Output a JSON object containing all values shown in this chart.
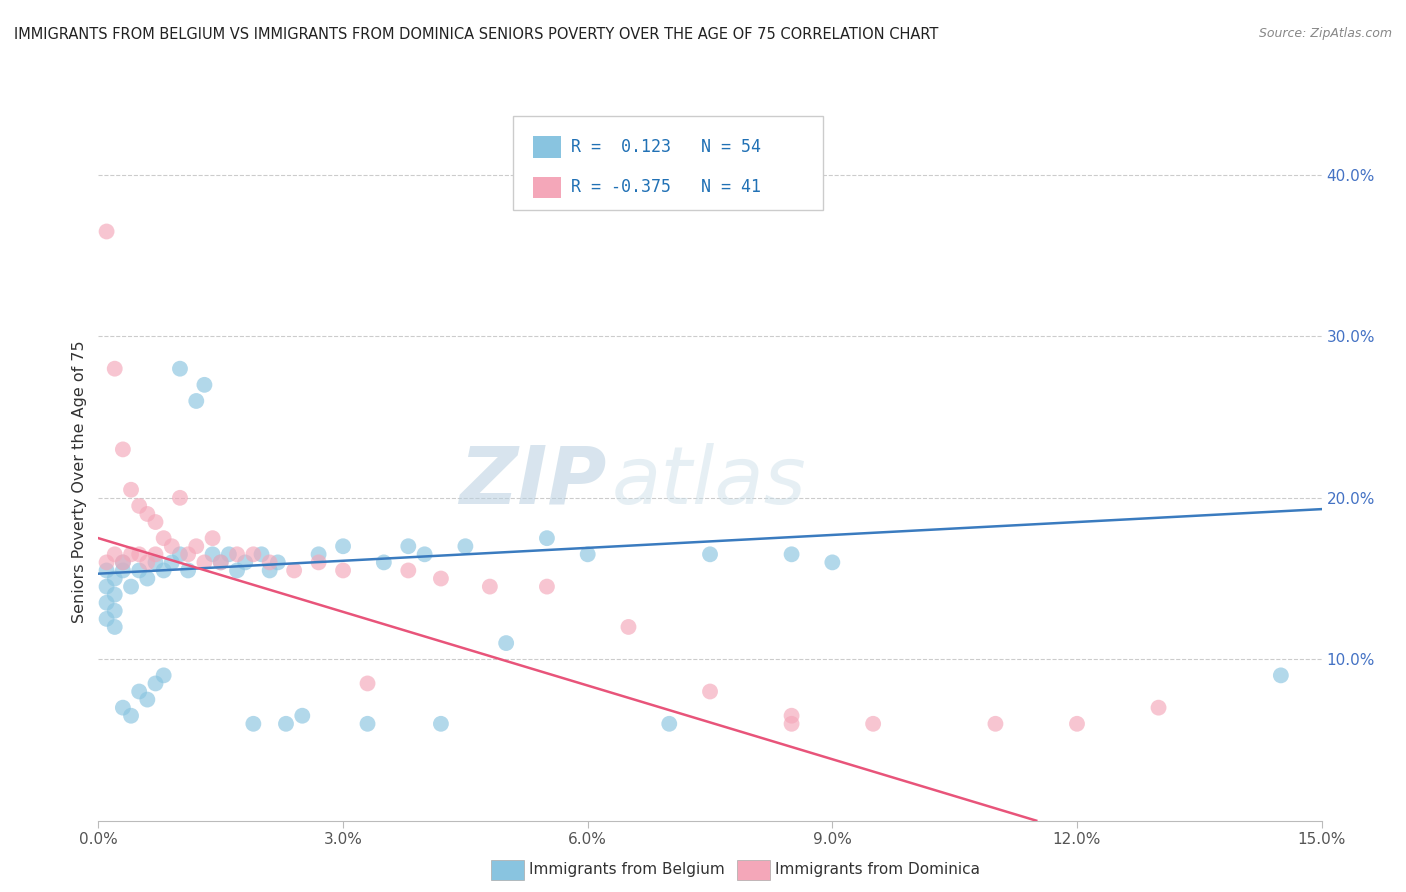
{
  "title": "IMMIGRANTS FROM BELGIUM VS IMMIGRANTS FROM DOMINICA SENIORS POVERTY OVER THE AGE OF 75 CORRELATION CHART",
  "source": "Source: ZipAtlas.com",
  "ylabel": "Seniors Poverty Over the Age of 75",
  "watermark": "ZIPatlas",
  "blue_label": "Immigrants from Belgium",
  "pink_label": "Immigrants from Dominica",
  "blue_R": 0.123,
  "blue_N": 54,
  "pink_R": -0.375,
  "pink_N": 41,
  "xlim": [
    0.0,
    0.15
  ],
  "ylim": [
    0.0,
    0.42
  ],
  "xticks": [
    0.0,
    0.03,
    0.06,
    0.09,
    0.12,
    0.15
  ],
  "xtick_labels": [
    "0.0%",
    "3.0%",
    "6.0%",
    "9.0%",
    "12.0%",
    "15.0%"
  ],
  "yticks_right": [
    0.1,
    0.2,
    0.3,
    0.4
  ],
  "ytick_right_labels": [
    "10.0%",
    "20.0%",
    "30.0%",
    "40.0%"
  ],
  "blue_color": "#89c4e0",
  "pink_color": "#f4a7b9",
  "blue_line_color": "#3a7bbf",
  "pink_line_color": "#e8547a",
  "blue_scatter_x": [
    0.001,
    0.001,
    0.001,
    0.001,
    0.002,
    0.002,
    0.002,
    0.002,
    0.003,
    0.003,
    0.003,
    0.004,
    0.004,
    0.005,
    0.005,
    0.006,
    0.006,
    0.007,
    0.007,
    0.008,
    0.008,
    0.009,
    0.01,
    0.01,
    0.011,
    0.012,
    0.013,
    0.014,
    0.015,
    0.016,
    0.017,
    0.018,
    0.019,
    0.02,
    0.021,
    0.022,
    0.023,
    0.025,
    0.027,
    0.03,
    0.033,
    0.035,
    0.038,
    0.04,
    0.042,
    0.045,
    0.05,
    0.055,
    0.06,
    0.07,
    0.075,
    0.085,
    0.09,
    0.145
  ],
  "blue_scatter_y": [
    0.155,
    0.145,
    0.135,
    0.125,
    0.15,
    0.14,
    0.13,
    0.12,
    0.16,
    0.155,
    0.07,
    0.145,
    0.065,
    0.155,
    0.08,
    0.15,
    0.075,
    0.16,
    0.085,
    0.155,
    0.09,
    0.16,
    0.28,
    0.165,
    0.155,
    0.26,
    0.27,
    0.165,
    0.16,
    0.165,
    0.155,
    0.16,
    0.06,
    0.165,
    0.155,
    0.16,
    0.06,
    0.065,
    0.165,
    0.17,
    0.06,
    0.16,
    0.17,
    0.165,
    0.06,
    0.17,
    0.11,
    0.175,
    0.165,
    0.06,
    0.165,
    0.165,
    0.16,
    0.09
  ],
  "pink_scatter_x": [
    0.001,
    0.001,
    0.002,
    0.002,
    0.003,
    0.003,
    0.004,
    0.004,
    0.005,
    0.005,
    0.006,
    0.006,
    0.007,
    0.007,
    0.008,
    0.009,
    0.01,
    0.011,
    0.012,
    0.013,
    0.014,
    0.015,
    0.017,
    0.019,
    0.021,
    0.024,
    0.027,
    0.03,
    0.033,
    0.038,
    0.042,
    0.048,
    0.055,
    0.065,
    0.075,
    0.085,
    0.095,
    0.11,
    0.12,
    0.13,
    0.085
  ],
  "pink_scatter_y": [
    0.365,
    0.16,
    0.28,
    0.165,
    0.23,
    0.16,
    0.205,
    0.165,
    0.195,
    0.165,
    0.19,
    0.16,
    0.185,
    0.165,
    0.175,
    0.17,
    0.2,
    0.165,
    0.17,
    0.16,
    0.175,
    0.16,
    0.165,
    0.165,
    0.16,
    0.155,
    0.16,
    0.155,
    0.085,
    0.155,
    0.15,
    0.145,
    0.145,
    0.12,
    0.08,
    0.065,
    0.06,
    0.06,
    0.06,
    0.07,
    0.06
  ],
  "blue_line_x0": 0.0,
  "blue_line_y0": 0.153,
  "blue_line_x1": 0.15,
  "blue_line_y1": 0.193,
  "pink_line_x0": 0.0,
  "pink_line_y0": 0.175,
  "pink_line_x1": 0.115,
  "pink_line_y1": 0.0
}
